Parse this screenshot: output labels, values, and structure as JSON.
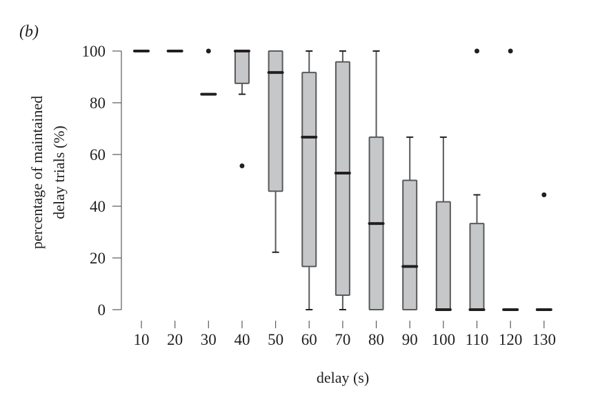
{
  "chart_data": {
    "type": "boxplot",
    "panel_label": "(b)",
    "xlabel": "delay (s)",
    "ylabel_lines": [
      "percentage of maintained",
      "delay trials (%)"
    ],
    "ylim": [
      0,
      100
    ],
    "yticks": [
      0,
      20,
      40,
      60,
      80,
      100
    ],
    "grid": false,
    "categories": [
      "10",
      "20",
      "30",
      "40",
      "50",
      "60",
      "70",
      "80",
      "90",
      "100",
      "110",
      "120",
      "130"
    ],
    "boxes": [
      {
        "min": 100,
        "q1": 100,
        "median": 100,
        "q3": 100,
        "max": 100,
        "outliers": []
      },
      {
        "min": 100,
        "q1": 100,
        "median": 100,
        "q3": 100,
        "max": 100,
        "outliers": []
      },
      {
        "min": 83.3,
        "q1": 83.3,
        "median": 83.3,
        "q3": 83.3,
        "max": 83.3,
        "outliers": [
          100
        ]
      },
      {
        "min": 83.3,
        "q1": 87.5,
        "median": 100,
        "q3": 100,
        "max": 100,
        "outliers": [
          55.6
        ]
      },
      {
        "min": 22.2,
        "q1": 45.8,
        "median": 91.7,
        "q3": 100,
        "max": 100,
        "outliers": []
      },
      {
        "min": 0,
        "q1": 16.7,
        "median": 66.7,
        "q3": 91.7,
        "max": 100,
        "outliers": []
      },
      {
        "min": 0,
        "q1": 5.6,
        "median": 52.8,
        "q3": 95.8,
        "max": 100,
        "outliers": []
      },
      {
        "min": 0,
        "q1": 0,
        "median": 33.3,
        "q3": 66.7,
        "max": 100,
        "outliers": []
      },
      {
        "min": 0,
        "q1": 0,
        "median": 16.7,
        "q3": 50,
        "max": 66.7,
        "outliers": []
      },
      {
        "min": 0,
        "q1": 0,
        "median": 0,
        "q3": 41.7,
        "max": 66.7,
        "outliers": []
      },
      {
        "min": 0,
        "q1": 0,
        "median": 0,
        "q3": 33.3,
        "max": 44.4,
        "outliers": [
          100
        ]
      },
      {
        "min": 0,
        "q1": 0,
        "median": 0,
        "q3": 0,
        "max": 0,
        "outliers": [
          100
        ]
      },
      {
        "min": 0,
        "q1": 0,
        "median": 0,
        "q3": 0,
        "max": 0,
        "outliers": [
          44.4
        ]
      }
    ],
    "colors": {
      "box_fill": "#c6c7c9",
      "box_stroke": "#58595b",
      "median": "#231f20",
      "outlier": "#231f20",
      "axis": "#58595b"
    }
  }
}
